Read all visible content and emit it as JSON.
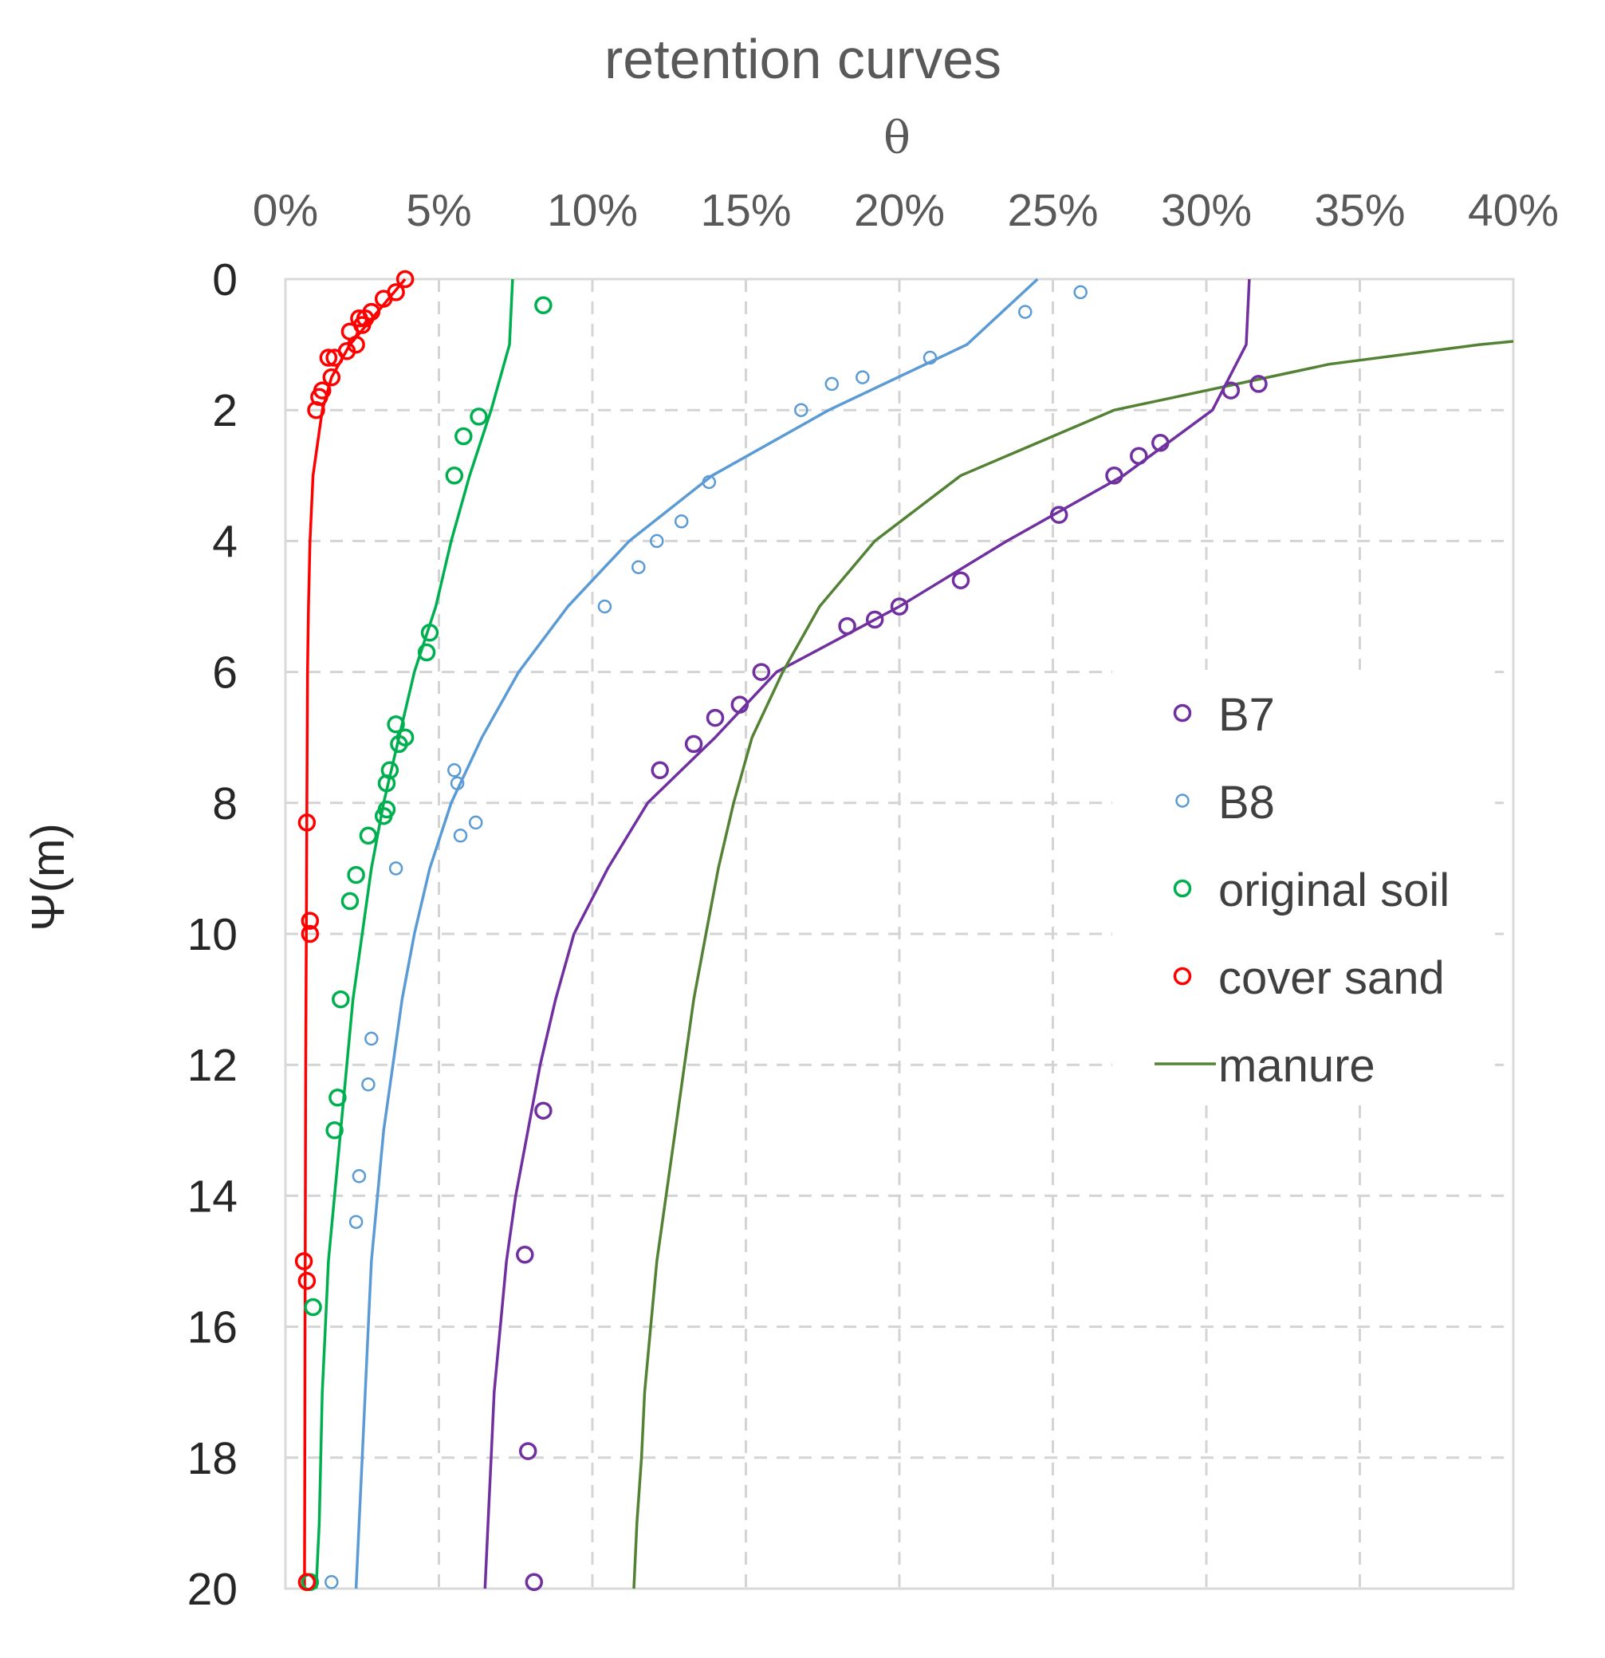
{
  "chart_data": {
    "type": "scatter",
    "title": "retention curves",
    "xlabel": "θ",
    "ylabel": "Ψ(m)",
    "xlim": [
      0,
      40
    ],
    "ylim": [
      0,
      20
    ],
    "x_axis_position": "top",
    "y_axis_inverted": true,
    "grid": true,
    "legend_position": "right",
    "x_ticks": [
      "0%",
      "5%",
      "10%",
      "15%",
      "20%",
      "25%",
      "30%",
      "35%",
      "40%"
    ],
    "x_tick_values": [
      0,
      5,
      10,
      15,
      20,
      25,
      30,
      35,
      40
    ],
    "y_ticks": [
      "0",
      "2",
      "4",
      "6",
      "8",
      "10",
      "12",
      "14",
      "16",
      "18",
      "20"
    ],
    "y_tick_values": [
      0,
      2,
      4,
      6,
      8,
      10,
      12,
      14,
      16,
      18,
      20
    ],
    "series": [
      {
        "name": "B7",
        "color": "#7030a0",
        "marker": "circle",
        "points": [
          [
            31.7,
            1.6
          ],
          [
            30.8,
            1.7
          ],
          [
            28.5,
            2.5
          ],
          [
            27.8,
            2.7
          ],
          [
            27.0,
            3.0
          ],
          [
            25.2,
            3.6
          ],
          [
            22.0,
            4.6
          ],
          [
            20.0,
            5.0
          ],
          [
            19.2,
            5.2
          ],
          [
            18.3,
            5.3
          ],
          [
            15.5,
            6.0
          ],
          [
            14.8,
            6.5
          ],
          [
            14.0,
            6.7
          ],
          [
            13.3,
            7.1
          ],
          [
            12.2,
            7.5
          ],
          [
            8.4,
            12.7
          ],
          [
            7.8,
            14.9
          ],
          [
            7.9,
            17.9
          ],
          [
            8.1,
            19.9
          ]
        ],
        "curve": [
          [
            31.4,
            0
          ],
          [
            31.3,
            1.0
          ],
          [
            30.2,
            2.0
          ],
          [
            27.3,
            3.0
          ],
          [
            23.5,
            4.0
          ],
          [
            20.0,
            5.0
          ],
          [
            16.0,
            6.0
          ],
          [
            14.0,
            7.0
          ],
          [
            11.8,
            8.0
          ],
          [
            10.5,
            9.0
          ],
          [
            9.4,
            10.0
          ],
          [
            8.8,
            11.0
          ],
          [
            8.3,
            12.0
          ],
          [
            7.9,
            13.0
          ],
          [
            7.5,
            14.0
          ],
          [
            7.2,
            15.0
          ],
          [
            7.0,
            16.0
          ],
          [
            6.8,
            17.0
          ],
          [
            6.7,
            18.0
          ],
          [
            6.6,
            19.0
          ],
          [
            6.5,
            20.0
          ]
        ]
      },
      {
        "name": "B8",
        "color": "#5b9bd5",
        "marker": "circle-small",
        "points": [
          [
            25.9,
            0.2
          ],
          [
            24.1,
            0.5
          ],
          [
            21.0,
            1.2
          ],
          [
            18.8,
            1.5
          ],
          [
            17.8,
            1.6
          ],
          [
            16.8,
            2.0
          ],
          [
            13.8,
            3.1
          ],
          [
            12.9,
            3.7
          ],
          [
            12.1,
            4.0
          ],
          [
            11.5,
            4.4
          ],
          [
            10.4,
            5.0
          ],
          [
            5.5,
            7.5
          ],
          [
            5.6,
            7.7
          ],
          [
            6.2,
            8.3
          ],
          [
            5.7,
            8.5
          ],
          [
            3.6,
            9.0
          ],
          [
            2.8,
            11.6
          ],
          [
            2.7,
            12.3
          ],
          [
            2.4,
            13.7
          ],
          [
            2.3,
            14.4
          ],
          [
            1.5,
            19.9
          ]
        ],
        "curve": [
          [
            24.5,
            0
          ],
          [
            22.2,
            1.0
          ],
          [
            17.7,
            2.0
          ],
          [
            13.9,
            3.0
          ],
          [
            11.2,
            4.0
          ],
          [
            9.2,
            5.0
          ],
          [
            7.6,
            6.0
          ],
          [
            6.4,
            7.0
          ],
          [
            5.4,
            8.0
          ],
          [
            4.7,
            9.0
          ],
          [
            4.2,
            10.0
          ],
          [
            3.8,
            11.0
          ],
          [
            3.5,
            12.0
          ],
          [
            3.2,
            13.0
          ],
          [
            3.0,
            14.0
          ],
          [
            2.8,
            15.0
          ],
          [
            2.7,
            16.0
          ],
          [
            2.6,
            17.0
          ],
          [
            2.5,
            18.0
          ],
          [
            2.4,
            19.0
          ],
          [
            2.3,
            20.0
          ]
        ]
      },
      {
        "name": "original soil",
        "color": "#00b050",
        "marker": "circle",
        "points": [
          [
            8.4,
            0.4
          ],
          [
            6.3,
            2.1
          ],
          [
            5.8,
            2.4
          ],
          [
            5.5,
            3.0
          ],
          [
            4.7,
            5.4
          ],
          [
            4.6,
            5.7
          ],
          [
            3.6,
            6.8
          ],
          [
            3.9,
            7.0
          ],
          [
            3.7,
            7.1
          ],
          [
            3.4,
            7.5
          ],
          [
            3.3,
            7.7
          ],
          [
            3.3,
            8.1
          ],
          [
            3.2,
            8.2
          ],
          [
            2.7,
            8.5
          ],
          [
            2.3,
            9.1
          ],
          [
            2.1,
            9.5
          ],
          [
            1.8,
            11.0
          ],
          [
            1.7,
            12.5
          ],
          [
            1.6,
            13.0
          ],
          [
            0.9,
            15.7
          ],
          [
            0.8,
            19.9
          ]
        ],
        "curve": [
          [
            7.4,
            0
          ],
          [
            7.3,
            1.0
          ],
          [
            6.7,
            2.0
          ],
          [
            6.0,
            3.0
          ],
          [
            5.4,
            4.0
          ],
          [
            4.9,
            5.0
          ],
          [
            4.2,
            6.0
          ],
          [
            3.7,
            7.0
          ],
          [
            3.2,
            8.0
          ],
          [
            2.8,
            9.0
          ],
          [
            2.5,
            10.0
          ],
          [
            2.2,
            11.0
          ],
          [
            2.0,
            12.0
          ],
          [
            1.8,
            13.0
          ],
          [
            1.6,
            14.0
          ],
          [
            1.4,
            15.0
          ],
          [
            1.3,
            16.0
          ],
          [
            1.2,
            17.0
          ],
          [
            1.15,
            18.0
          ],
          [
            1.1,
            19.0
          ],
          [
            1.0,
            20.0
          ]
        ]
      },
      {
        "name": "cover sand",
        "color": "#ff0000",
        "marker": "circle",
        "points": [
          [
            3.9,
            0.0
          ],
          [
            3.6,
            0.2
          ],
          [
            3.2,
            0.3
          ],
          [
            2.8,
            0.5
          ],
          [
            2.6,
            0.6
          ],
          [
            2.4,
            0.6
          ],
          [
            2.5,
            0.7
          ],
          [
            2.1,
            0.8
          ],
          [
            2.3,
            1.0
          ],
          [
            2.0,
            1.1
          ],
          [
            1.6,
            1.2
          ],
          [
            1.4,
            1.2
          ],
          [
            1.5,
            1.5
          ],
          [
            1.2,
            1.7
          ],
          [
            1.1,
            1.8
          ],
          [
            1.0,
            2.0
          ],
          [
            0.7,
            8.3
          ],
          [
            0.8,
            9.8
          ],
          [
            0.8,
            10.0
          ],
          [
            0.6,
            15.0
          ],
          [
            0.7,
            15.3
          ],
          [
            0.7,
            19.9
          ]
        ],
        "curve": [
          [
            3.9,
            0
          ],
          [
            3.0,
            0.5
          ],
          [
            2.1,
            1.0
          ],
          [
            1.5,
            1.5
          ],
          [
            1.2,
            2.0
          ],
          [
            0.9,
            3.0
          ],
          [
            0.8,
            4.0
          ],
          [
            0.75,
            5.0
          ],
          [
            0.72,
            6.0
          ],
          [
            0.7,
            8.0
          ],
          [
            0.68,
            10.0
          ],
          [
            0.66,
            12.0
          ],
          [
            0.65,
            14.0
          ],
          [
            0.64,
            16.0
          ],
          [
            0.63,
            18.0
          ],
          [
            0.62,
            20.0
          ]
        ]
      },
      {
        "name": "manure",
        "color": "#548235",
        "marker": "none",
        "points": [],
        "curve": [
          [
            40.0,
            0.95
          ],
          [
            38.9,
            1.0
          ],
          [
            34.0,
            1.3
          ],
          [
            30.5,
            1.65
          ],
          [
            29.0,
            1.8
          ],
          [
            27.0,
            2.0
          ],
          [
            22.0,
            3.0
          ],
          [
            19.2,
            4.0
          ],
          [
            17.4,
            5.0
          ],
          [
            16.2,
            6.0
          ],
          [
            15.2,
            7.0
          ],
          [
            14.6,
            8.0
          ],
          [
            14.1,
            9.0
          ],
          [
            13.7,
            10.0
          ],
          [
            13.3,
            11.0
          ],
          [
            13.0,
            12.0
          ],
          [
            12.7,
            13.0
          ],
          [
            12.4,
            14.0
          ],
          [
            12.1,
            15.0
          ],
          [
            11.9,
            16.0
          ],
          [
            11.7,
            17.0
          ],
          [
            11.6,
            18.0
          ],
          [
            11.45,
            19.0
          ],
          [
            11.35,
            20.0
          ]
        ]
      }
    ]
  }
}
